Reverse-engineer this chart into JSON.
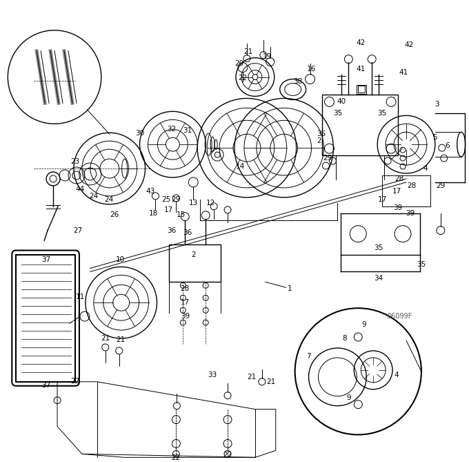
{
  "bg_color": "#ffffff",
  "line_color": "#000000",
  "text_color": "#000000",
  "figsize": [
    6.8,
    6.69
  ],
  "dpi": 100,
  "watermark": "06099F"
}
